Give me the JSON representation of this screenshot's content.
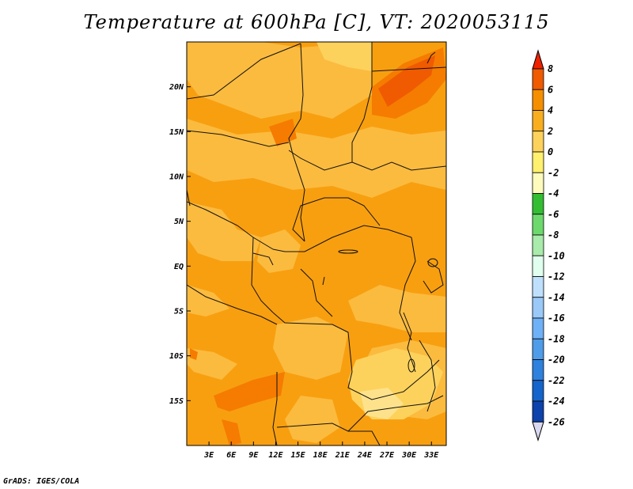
{
  "title": "Temperature at 600hPa [C], VT: 2020053115",
  "credit": "GrADS: IGES/COLA",
  "chart_data": {
    "type": "heatmap",
    "title": "Temperature at 600hPa [C], VT: 2020053115",
    "x_ticks": [
      "3E",
      "6E",
      "9E",
      "12E",
      "15E",
      "18E",
      "21E",
      "24E",
      "27E",
      "30E",
      "33E"
    ],
    "x_tick_values": [
      3,
      6,
      9,
      12,
      15,
      18,
      21,
      24,
      27,
      30,
      33
    ],
    "y_ticks": [
      "20N",
      "15N",
      "10N",
      "5N",
      "EQ",
      "5S",
      "10S",
      "15S"
    ],
    "y_tick_values": [
      20,
      15,
      10,
      5,
      0,
      -5,
      -10,
      -15
    ],
    "xlim": [
      0,
      35
    ],
    "ylim": [
      -20,
      25
    ],
    "colorbar": {
      "labels": [
        "8",
        "6",
        "4",
        "2",
        "0",
        "-2",
        "-4",
        "-6",
        "-8",
        "-10",
        "-12",
        "-14",
        "-16",
        "-18",
        "-20",
        "-22",
        "-24",
        "-26"
      ],
      "colors": [
        "#ee2200",
        "#f05a00",
        "#f58f00",
        "#f8ae1f",
        "#fdd25c",
        "#fff06e",
        "#fefbbc",
        "#33bd33",
        "#6dd96d",
        "#a9ebaa",
        "#e1ffee",
        "#bee0fd",
        "#9ac9f8",
        "#6fb1f7",
        "#4f9ce8",
        "#2f81de",
        "#1564cc",
        "#0d42ac",
        "#0d1d82",
        "#d8d8f0"
      ],
      "top_arrow_color": "#ee2200",
      "bottom_arrow_color": "#d8d8f0"
    },
    "field_colors": {
      "base": "#f89f10",
      "light": "#fbbb3f",
      "lighter": "#fdd25c",
      "pale": "#fee28b",
      "warm": "#f57c00",
      "hot": "#f05a00"
    }
  }
}
